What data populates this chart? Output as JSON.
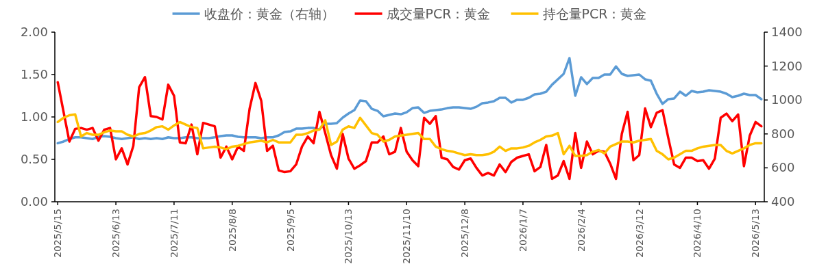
{
  "chart_data": {
    "type": "line",
    "legend": "top",
    "grid": false,
    "categories": [
      "2025/5/15",
      null,
      null,
      null,
      null,
      null,
      null,
      null,
      null,
      null,
      "2025/6/13",
      null,
      null,
      null,
      null,
      null,
      null,
      null,
      null,
      null,
      "2025/7/11",
      null,
      null,
      null,
      null,
      null,
      null,
      null,
      null,
      null,
      "2025/8/8",
      null,
      null,
      null,
      null,
      null,
      null,
      null,
      null,
      null,
      "2025/9/5",
      null,
      null,
      null,
      null,
      null,
      null,
      null,
      null,
      null,
      "2025/10/13",
      null,
      null,
      null,
      null,
      null,
      null,
      null,
      null,
      null,
      "2025/11/10",
      null,
      null,
      null,
      null,
      null,
      null,
      null,
      null,
      null,
      "2025/12/8",
      null,
      null,
      null,
      null,
      null,
      null,
      null,
      null,
      null,
      "2026/1/7",
      null,
      null,
      null,
      null,
      null,
      null,
      null,
      null,
      null,
      "2026/2/4",
      null,
      null,
      null,
      null,
      null,
      null,
      null,
      null,
      null,
      "2026/3/12",
      null,
      null,
      null,
      null,
      null,
      null,
      null,
      null,
      null,
      "2026/4/10",
      null,
      null,
      null,
      null,
      null,
      null,
      null,
      null,
      null,
      "2026/5/13",
      null
    ],
    "ylim": [
      0,
      2
    ],
    "yticks": [
      {
        "value": 0,
        "label": "0.00"
      },
      {
        "value": 0.5,
        "label": "0.50"
      },
      {
        "value": 1,
        "label": "1.00"
      },
      {
        "value": 1.5,
        "label": "1.50"
      },
      {
        "value": 2,
        "label": "2.00"
      }
    ],
    "y2lim": [
      400,
      1400
    ],
    "y2ticks": [
      400,
      600,
      800,
      1000,
      1200,
      1400
    ],
    "series": [
      {
        "name": "收盘价：黄金（右轴）",
        "color": "#5b9bd5",
        "axis": "y2",
        "values": [
          745,
          755,
          770,
          780,
          780,
          775,
          770,
          783,
          787,
          783,
          775,
          770,
          775,
          780,
          770,
          775,
          770,
          775,
          770,
          780,
          775,
          775,
          780,
          780,
          775,
          775,
          775,
          780,
          787,
          791,
          791,
          783,
          780,
          780,
          780,
          775,
          780,
          780,
          791,
          811,
          815,
          831,
          831,
          835,
          835,
          827,
          860,
          860,
          864,
          896,
          920,
          940,
          997,
          993,
          948,
          936,
          904,
          912,
          920,
          916,
          928,
          952,
          956,
          924,
          936,
          940,
          944,
          952,
          956,
          956,
          952,
          948,
          960,
          981,
          985,
          993,
          1013,
          1013,
          985,
          1001,
          1001,
          1013,
          1033,
          1037,
          1049,
          1090,
          1122,
          1154,
          1247,
          1025,
          1134,
          1094,
          1130,
          1130,
          1150,
          1150,
          1198,
          1154,
          1142,
          1146,
          1150,
          1122,
          1114,
          1037,
          977,
          1005,
          1009,
          1049,
          1025,
          1053,
          1045,
          1049,
          1057,
          1053,
          1049,
          1037,
          1017,
          1025,
          1037,
          1029,
          1029,
          1005
        ]
      },
      {
        "name": "成交量PCR：黄金",
        "color": "#ff0000",
        "values": [
          1.41,
          1.06,
          0.71,
          0.86,
          0.87,
          0.85,
          0.87,
          0.72,
          0.85,
          0.87,
          0.5,
          0.63,
          0.44,
          0.66,
          1.35,
          1.47,
          1.01,
          1.0,
          0.97,
          1.38,
          1.25,
          0.7,
          0.69,
          0.91,
          0.56,
          0.93,
          0.91,
          0.89,
          0.52,
          0.65,
          0.5,
          0.65,
          0.6,
          1.1,
          1.4,
          1.19,
          0.6,
          0.66,
          0.37,
          0.35,
          0.36,
          0.44,
          0.65,
          0.77,
          0.69,
          1.06,
          0.81,
          0.55,
          0.39,
          0.8,
          0.51,
          0.39,
          0.43,
          0.48,
          0.7,
          0.7,
          0.77,
          0.56,
          0.59,
          0.87,
          0.59,
          0.49,
          0.42,
          0.99,
          0.92,
          1.01,
          0.52,
          0.5,
          0.41,
          0.38,
          0.49,
          0.51,
          0.4,
          0.31,
          0.34,
          0.31,
          0.44,
          0.35,
          0.47,
          0.52,
          0.54,
          0.56,
          0.36,
          0.41,
          0.67,
          0.27,
          0.31,
          0.48,
          0.27,
          0.81,
          0.4,
          0.71,
          0.56,
          0.6,
          0.59,
          0.45,
          0.27,
          0.8,
          1.06,
          0.49,
          0.55,
          1.1,
          0.88,
          1.05,
          1.08,
          0.75,
          0.44,
          0.4,
          0.52,
          0.52,
          0.48,
          0.49,
          0.39,
          0.51,
          0.99,
          1.04,
          0.95,
          1.03,
          0.42,
          0.78,
          0.94,
          0.89
        ]
      },
      {
        "name": "持仓量PCR：黄金",
        "color": "#ffc000",
        "values": [
          0.94,
          0.99,
          1.02,
          1.03,
          0.77,
          0.81,
          0.79,
          0.79,
          0.82,
          0.84,
          0.83,
          0.83,
          0.79,
          0.77,
          0.8,
          0.81,
          0.84,
          0.88,
          0.89,
          0.85,
          0.9,
          0.94,
          0.91,
          0.88,
          0.87,
          0.63,
          0.64,
          0.65,
          0.64,
          0.62,
          0.65,
          0.66,
          0.68,
          0.7,
          0.71,
          0.72,
          0.7,
          0.73,
          0.7,
          0.7,
          0.7,
          0.79,
          0.79,
          0.81,
          0.84,
          0.85,
          0.96,
          0.67,
          0.71,
          0.85,
          0.89,
          0.87,
          0.99,
          0.9,
          0.81,
          0.79,
          0.71,
          0.73,
          0.77,
          0.78,
          0.79,
          0.8,
          0.81,
          0.74,
          0.74,
          0.65,
          0.62,
          0.6,
          0.59,
          0.57,
          0.55,
          0.56,
          0.55,
          0.55,
          0.56,
          0.59,
          0.65,
          0.6,
          0.63,
          0.63,
          0.64,
          0.66,
          0.7,
          0.73,
          0.77,
          0.78,
          0.81,
          0.56,
          0.66,
          0.54,
          0.54,
          0.55,
          0.59,
          0.61,
          0.57,
          0.65,
          0.68,
          0.71,
          0.71,
          0.7,
          0.72,
          0.73,
          0.74,
          0.6,
          0.56,
          0.5,
          0.52,
          0.56,
          0.6,
          0.6,
          0.63,
          0.65,
          0.66,
          0.67,
          0.67,
          0.6,
          0.57,
          0.6,
          0.63,
          0.67,
          0.69,
          0.69
        ]
      }
    ]
  }
}
